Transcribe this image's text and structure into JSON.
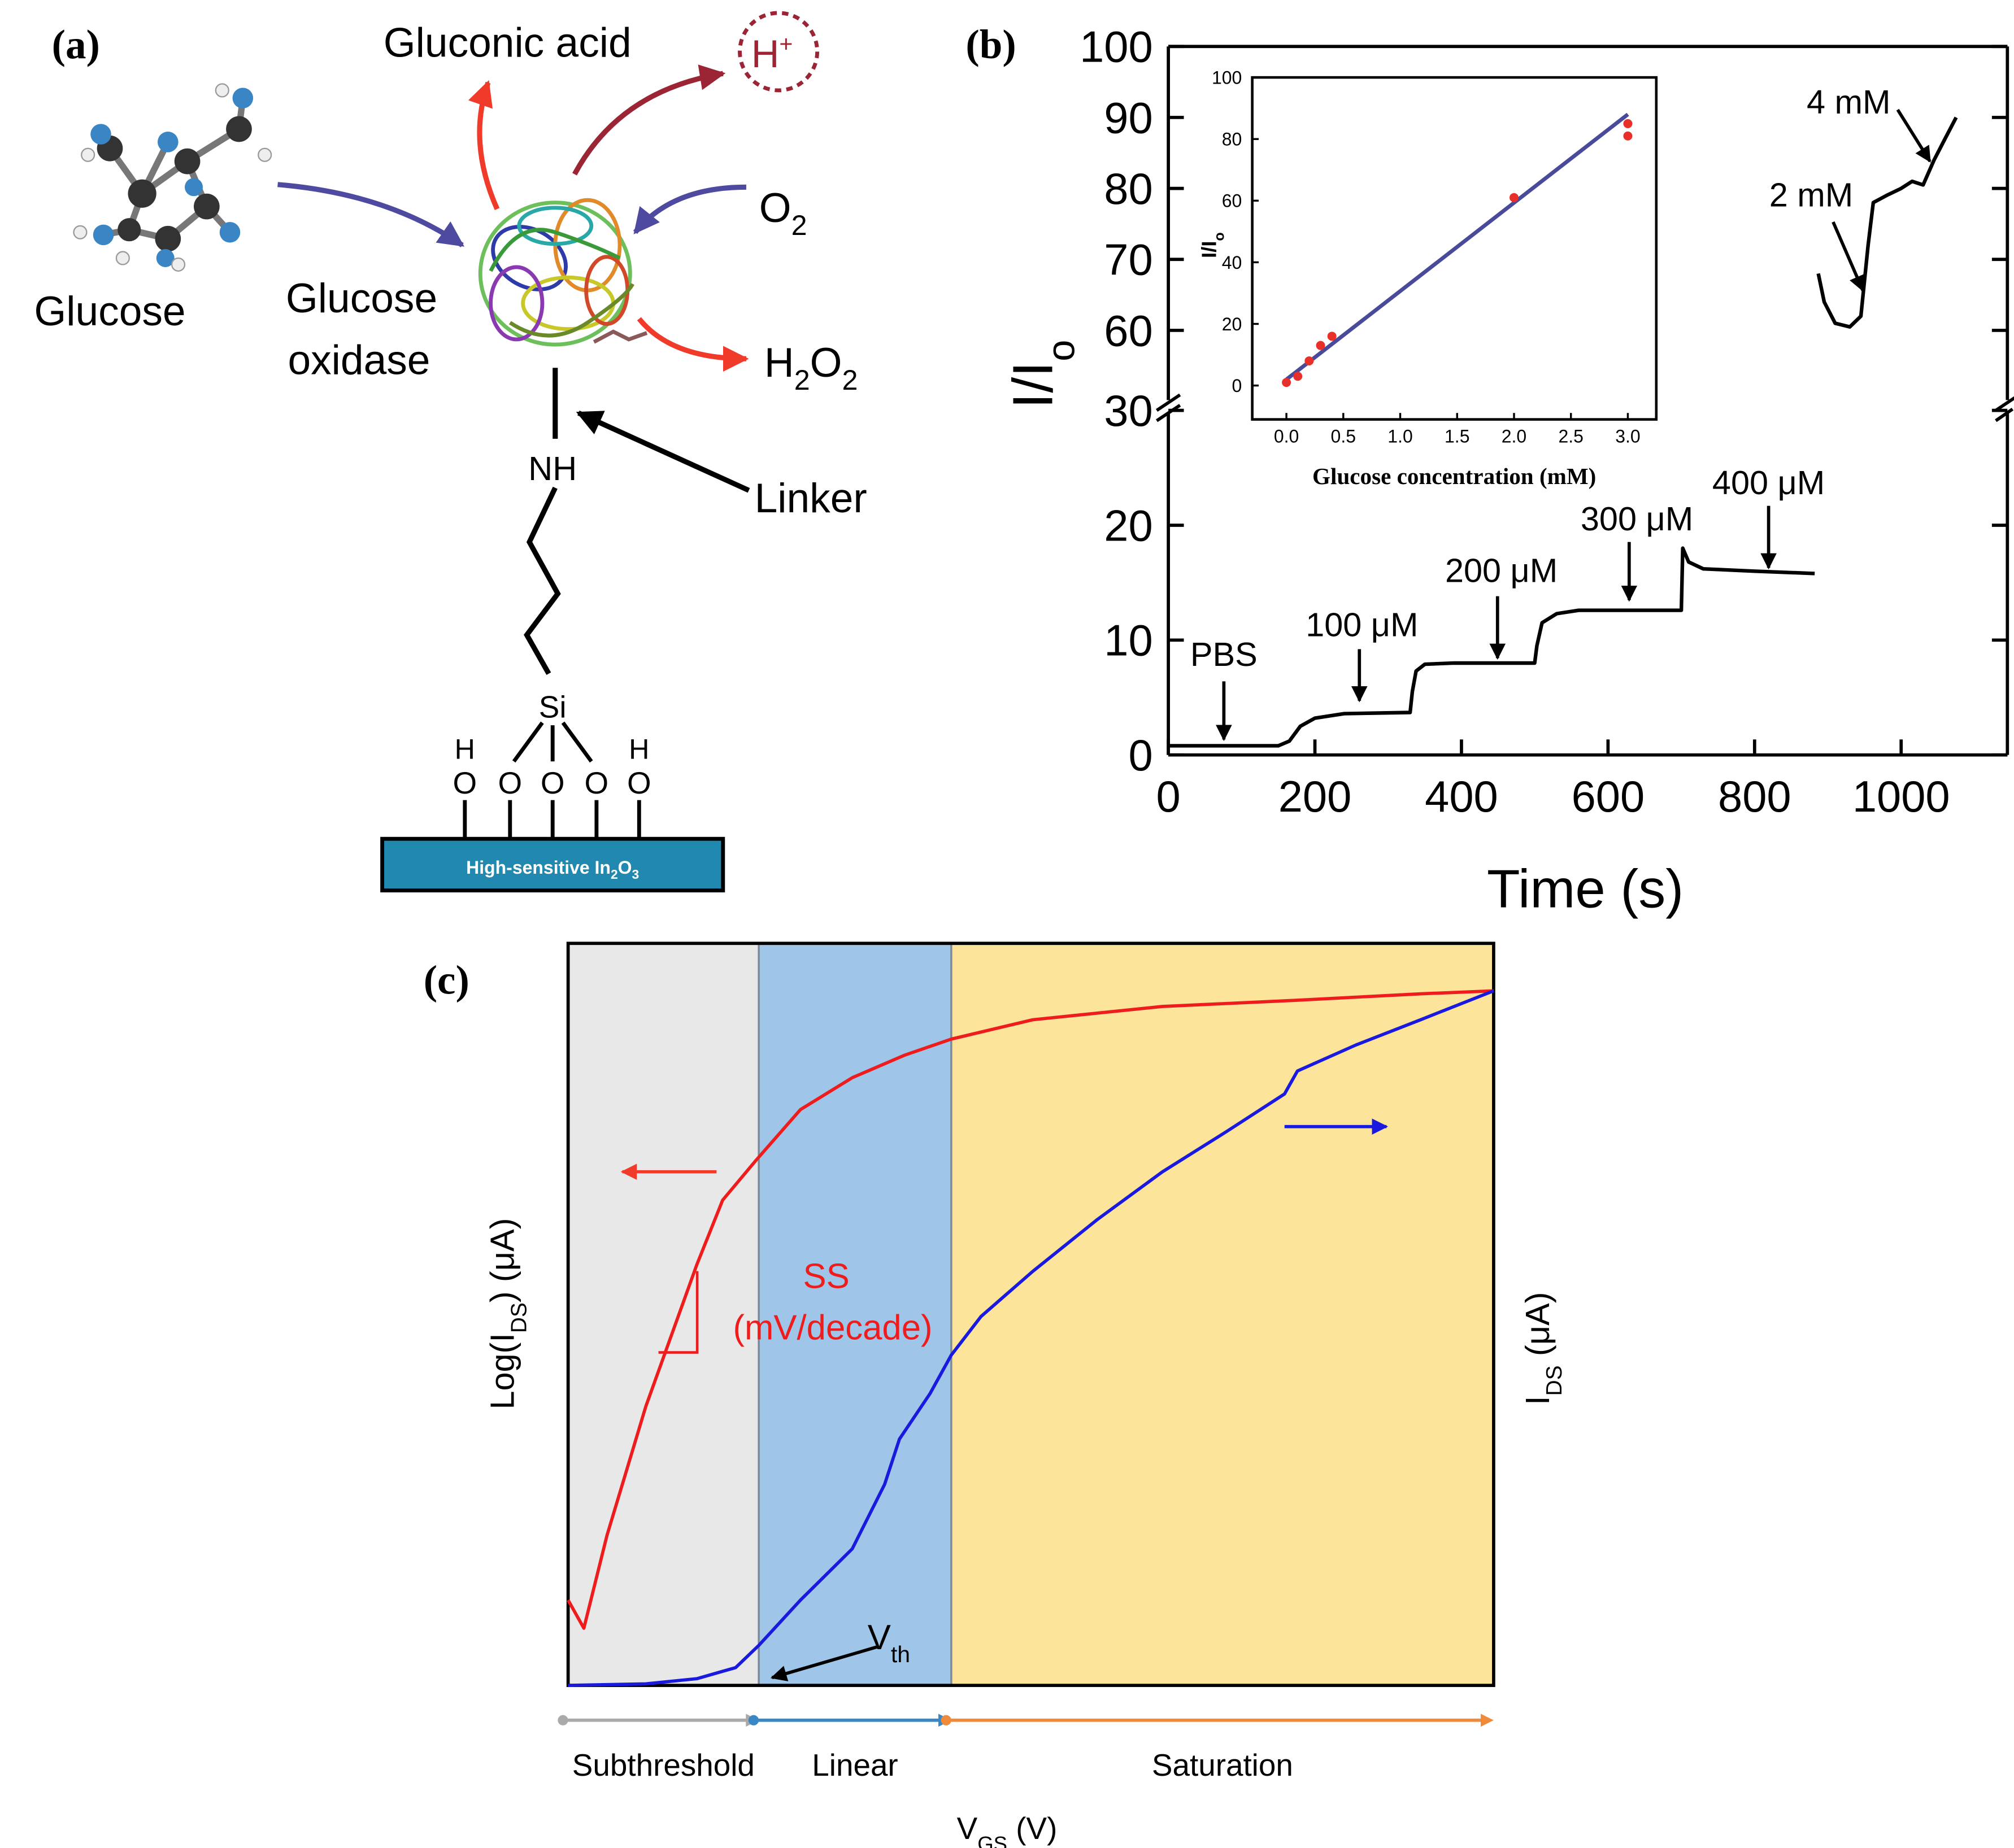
{
  "panels": {
    "a": "(a)",
    "b": "(b)",
    "c": "(c)"
  },
  "diagram": {
    "gluconic_acid": "Gluconic acid",
    "proton": {
      "text": "H",
      "sup": "+"
    },
    "oxygen": {
      "text": "O",
      "sub": "2"
    },
    "glucose": "Glucose",
    "enzyme": [
      "Glucose",
      "oxidase"
    ],
    "peroxide": {
      "parts": [
        "H",
        "2",
        "O",
        "2"
      ]
    },
    "amine": "NH",
    "linker": "Linker",
    "silicon": "Si",
    "hydroxyl_h": [
      "H",
      "H"
    ],
    "oxygens": [
      "O",
      "O",
      "O",
      "O",
      "O"
    ],
    "substrate": {
      "text": "High-sensitive In",
      "sub1": "2",
      "mid": "O",
      "sub2": "3"
    }
  },
  "chart_data": [
    {
      "type": "line",
      "xlabel": "Time (s)",
      "ylabel": {
        "text": "I/I",
        "sub": "o"
      },
      "xlim": [
        0,
        1145
      ],
      "xticks": [
        0,
        200,
        400,
        600,
        800,
        1000
      ],
      "ylim": [
        0,
        100
      ],
      "ybreak": [
        30,
        50
      ],
      "yticks": [
        0,
        10,
        20,
        30,
        60,
        70,
        80,
        90,
        100
      ],
      "x": [
        0,
        150,
        165,
        180,
        200,
        240,
        330,
        333,
        338,
        350,
        390,
        500,
        503,
        510,
        530,
        560,
        700,
        702,
        710,
        730,
        800,
        882,
        885,
        887,
        895,
        910,
        930,
        945,
        955,
        962,
        980,
        1000,
        1015,
        1030,
        1045,
        1060,
        1075
      ],
      "series": [
        {
          "color": "#000000",
          "values": [
            0.8,
            0.8,
            1.2,
            2.5,
            3.2,
            3.6,
            3.7,
            5.5,
            7.3,
            7.9,
            8,
            8,
            9.5,
            11.5,
            12.3,
            12.6,
            12.6,
            18,
            16.8,
            16.2,
            16,
            15.8,
            null,
            68,
            64,
            61,
            60.5,
            62,
            72,
            78,
            79,
            80,
            81,
            80.5,
            84,
            87,
            90
          ]
        }
      ],
      "annotations": [
        "PBS",
        "100 μM",
        "200 μM",
        "300 μM",
        "400 μM",
        "2 mM",
        "4 mM"
      ]
    },
    {
      "type": "scatter",
      "xlabel": "Glucose concentration (mM)",
      "ylabel": {
        "text": "I/I",
        "sub": "o"
      },
      "xlim": [
        -0.3,
        3.25
      ],
      "xticks": [
        {
          "value": 0,
          "label": "0.0"
        },
        0.5,
        {
          "value": 1,
          "label": "1.0"
        },
        1.5,
        {
          "value": 2,
          "label": "2.0"
        },
        2.5,
        {
          "value": 3,
          "label": "3.0"
        }
      ],
      "ylim": [
        -11,
        100
      ],
      "yticks": [
        0,
        20,
        40,
        60,
        80,
        100
      ],
      "x": [
        0,
        0.1,
        0.2,
        0.3,
        0.4,
        2,
        3,
        3
      ],
      "values": [
        1,
        3,
        8,
        13,
        16,
        61,
        85,
        81
      ],
      "color": "#e8302a",
      "fit": {
        "x": [
          0,
          3
        ],
        "values": [
          2,
          88
        ],
        "color": "#4a4a9a"
      }
    },
    {
      "type": "line",
      "xlabel": {
        "text": "V",
        "sub": "GS",
        "tail": " (V)"
      },
      "ylabel": {
        "text": "Log(I",
        "sub": "DS",
        "tail": ") (μA)"
      },
      "y2label": {
        "text": "I",
        "sub": "DS",
        "tail": " (μA)"
      },
      "xlim": [
        0,
        100
      ],
      "ylim": [
        0,
        100
      ],
      "y2lim": [
        0,
        100
      ],
      "regions": [
        {
          "label": "Subthreshold",
          "from": 0,
          "to": 20.6,
          "color": "#e8e8e8",
          "arrow": "#aaaaaa"
        },
        {
          "label": "Linear",
          "from": 20.6,
          "to": 41.4,
          "color": "#9fc5e8",
          "arrow": "#3a87c8"
        },
        {
          "label": "Saturation",
          "from": 41.4,
          "to": 100,
          "color": "#fde49b",
          "arrow": "#ee8a3a"
        }
      ],
      "series": [
        {
          "color": "#ee1c1c",
          "axis": "y",
          "x": [
            0,
            1.7,
            4.2,
            8.4,
            13.9,
            16.7,
            20.2,
            25.1,
            30.7,
            36.3,
            41.4,
            50.2,
            64.2,
            78.1,
            92.1,
            100
          ],
          "values": [
            11.5,
            7.7,
            20.2,
            37.6,
            56.7,
            65.4,
            70.6,
            77.6,
            81.9,
            84.9,
            87.1,
            89.7,
            91.5,
            92.3,
            93.2,
            93.6
          ]
        },
        {
          "color": "#1a1adf",
          "axis": "y2",
          "x": [
            0,
            8.4,
            13.9,
            18.1,
            20.6,
            25.1,
            30.7,
            34.2,
            35.8,
            39.1,
            41.4,
            44.6,
            50.2,
            57.2,
            64.2,
            71.1,
            77.4,
            78.8,
            85.1,
            92.1,
            100
          ],
          "values": [
            0,
            0.2,
            0.9,
            2.4,
            5.4,
            11.5,
            18.4,
            27.1,
            33.2,
            39.3,
            44.5,
            49.7,
            55.8,
            62.8,
            69.2,
            74.6,
            79.7,
            82.8,
            86.3,
            89.7,
            93.6
          ]
        }
      ],
      "annotations": [
        "SS",
        "(mV/decade)",
        {
          "text": "V",
          "sub": "th"
        }
      ]
    }
  ]
}
